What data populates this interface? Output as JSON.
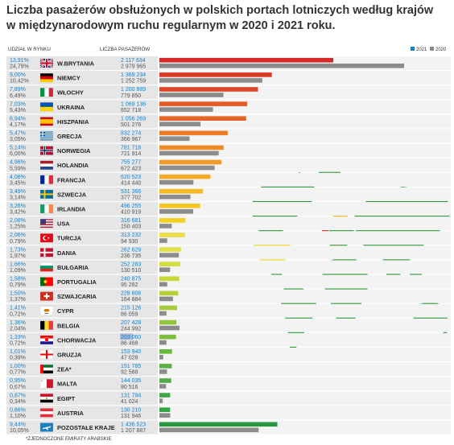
{
  "title_line1": "Liczba pasażerów obsłużonych w polskich portach lotniczych według krajów",
  "title_line2": "w międzynarodowym ruchu regularnym w 2020 i 2021 roku.",
  "header_share": "UDZIAŁ W RYNKU",
  "header_count": "LICZBA PASAŻERÓW",
  "footnote": "*ZJEDNOCZONE EMIRATY ARABSKIE",
  "colors": {
    "y2021": "#1e7fc0",
    "y2020": "#8c8c8c",
    "map_land": "#2d9a3b",
    "map_usa": "#f2da21"
  },
  "chart_data": {
    "type": "bar",
    "orientation": "horizontal",
    "legend": {
      "placement": "top-right",
      "entries": [
        "2021",
        "2020"
      ]
    },
    "columns": [
      "UDZIAŁ W RYNKU",
      "LICZBA PASAŻERÓW"
    ],
    "rows": [
      {
        "country": "W.BRYTANIA",
        "flag": "gb",
        "share2021": "13,91%",
        "share2020": "24,79%",
        "pass2021": "2 117 634",
        "pass2020": "2 979 965",
        "v2021": 2117634,
        "v2020": 2979965,
        "color": "#d42a27"
      },
      {
        "country": "NIEMCY",
        "flag": "de",
        "share2021": "9,00%",
        "share2020": "10,42%",
        "pass2021": "1 369 234",
        "pass2020": "1 252 759",
        "v2021": 1369234,
        "v2020": 1252759,
        "color": "#dc3a27"
      },
      {
        "country": "WŁOCHY",
        "flag": "it",
        "share2021": "7,89%",
        "share2020": "6,49%",
        "pass2021": "1 200 889",
        "pass2020": "779 850",
        "v2021": 1200889,
        "v2020": 779850,
        "color": "#e04527"
      },
      {
        "country": "UKRAINA",
        "flag": "ua",
        "share2021": "7,03%",
        "share2020": "5,43%",
        "pass2021": "1 069 136",
        "pass2020": "652 718",
        "v2021": 1069136,
        "v2020": 652718,
        "color": "#e55a27"
      },
      {
        "country": "HISZPANIA",
        "flag": "es",
        "share2021": "6,94%",
        "share2020": "4,17%",
        "pass2021": "1 056 269",
        "pass2020": "501 276",
        "v2021": 1056269,
        "v2020": 501276,
        "color": "#e86527"
      },
      {
        "country": "GRECJA",
        "flag": "gr",
        "share2021": "5,47%",
        "share2020": "3,05%",
        "pass2021": "832 274",
        "pass2020": "366 967",
        "v2021": 832274,
        "v2020": 366967,
        "color": "#ec7a27"
      },
      {
        "country": "NORWEGIA",
        "flag": "no",
        "share2021": "5,14%",
        "share2020": "6,00%",
        "pass2021": "781 718",
        "pass2020": "721 914",
        "v2021": 781718,
        "v2020": 721914,
        "color": "#ef8a28"
      },
      {
        "country": "HOLANDIA",
        "flag": "nl",
        "share2021": "4,96%",
        "share2020": "5,59%",
        "pass2021": "755 277",
        "pass2020": "672 423",
        "v2021": 755277,
        "v2020": 672423,
        "color": "#f19a28"
      },
      {
        "country": "FRANCJA",
        "flag": "fr",
        "share2021": "4,08%",
        "share2020": "3,45%",
        "pass2021": "620 523",
        "pass2020": "414 440",
        "v2021": 620523,
        "v2020": 414440,
        "color": "#f3aa28"
      },
      {
        "country": "SZWECJA",
        "flag": "se",
        "share2021": "3,49%",
        "share2020": "3,14%",
        "pass2021": "531 366",
        "pass2020": "377 702",
        "v2021": 531366,
        "v2020": 377702,
        "color": "#f4bb25"
      },
      {
        "country": "IRLANDIA",
        "flag": "ie",
        "share2021": "3,26%",
        "share2020": "3,42%",
        "pass2021": "496 255",
        "pass2020": "410 919",
        "v2021": 496255,
        "v2020": 410919,
        "color": "#f3c623"
      },
      {
        "country": "USA",
        "flag": "us",
        "share2021": "2,08%",
        "share2020": "1,25%",
        "pass2021": "316 681",
        "pass2020": "150 403",
        "v2021": 316681,
        "v2020": 150403,
        "color": "#f1d022"
      },
      {
        "country": "TURCJA",
        "flag": "tr",
        "share2021": "2,06%",
        "share2020": "0,79%",
        "pass2021": "313 232",
        "pass2020": "94 930",
        "v2021": 313232,
        "v2020": 94930,
        "color": "#ecdc48"
      },
      {
        "country": "DANIA",
        "flag": "dk",
        "share2021": "1,73%",
        "share2020": "1,97%",
        "pass2021": "262 629",
        "pass2020": "236 735",
        "v2021": 262629,
        "v2020": 236735,
        "color": "#e2e146"
      },
      {
        "country": "BUŁGARIA",
        "flag": "bg",
        "share2021": "1,66%",
        "share2020": "1,09%",
        "pass2021": "252 283",
        "pass2020": "130 510",
        "v2021": 252283,
        "v2020": 130510,
        "color": "#d4dc3c"
      },
      {
        "country": "PORTUGALIA",
        "flag": "pt",
        "share2021": "1,58%",
        "share2020": "0,79%",
        "pass2021": "240 875",
        "pass2020": "95 282",
        "v2021": 240875,
        "v2020": 95282,
        "color": "#c6d737"
      },
      {
        "country": "SZWAJCARIA",
        "flag": "ch",
        "share2021": "1,50%",
        "share2020": "1,37%",
        "pass2021": "228 606",
        "pass2020": "164 884",
        "v2021": 228606,
        "v2020": 164884,
        "color": "#b6d23a"
      },
      {
        "country": "CYPR",
        "flag": "cy",
        "share2021": "1,41%",
        "share2020": "0,72%",
        "pass2021": "215 126",
        "pass2020": "86 059",
        "v2021": 215126,
        "v2020": 86059,
        "color": "#a5cc3c"
      },
      {
        "country": "BELGIA",
        "flag": "be",
        "share2021": "1,36%",
        "share2020": "2,04%",
        "pass2021": "207 428",
        "pass2020": "244 992",
        "v2021": 207428,
        "v2020": 244992,
        "color": "#92c43e"
      },
      {
        "country": "CHORWACJA",
        "flag": "hr",
        "share2021": "1,33%",
        "share2020": "0,72%",
        "pass2021": "203 060",
        "pass2020": "86 468",
        "v2021": 203060,
        "v2020": 86468,
        "color": "#7fbd40",
        "highlight": true
      },
      {
        "country": "GRUZJA",
        "flag": "ge",
        "share2021": "1,01%",
        "share2020": "0,39%",
        "pass2021": "153 940",
        "pass2020": "47 028",
        "v2021": 153940,
        "v2020": 47028,
        "color": "#6db741"
      },
      {
        "country": "ZEA*",
        "flag": "ae",
        "share2021": "1,00%",
        "share2020": "0,77%",
        "pass2021": "151 785",
        "pass2020": "92 588",
        "v2021": 151785,
        "v2020": 92588,
        "color": "#5cb142"
      },
      {
        "country": "MALTA",
        "flag": "mt",
        "share2021": "0,95%",
        "share2020": "0,67%",
        "pass2021": "144 035",
        "pass2020": "80 516",
        "v2021": 144035,
        "v2020": 80516,
        "color": "#4fab43"
      },
      {
        "country": "EGIPT",
        "flag": "eg",
        "share2021": "0,87%",
        "share2020": "0,34%",
        "pass2021": "131 794",
        "pass2020": "41 024",
        "v2021": 131794,
        "v2020": 41024,
        "color": "#43a645"
      },
      {
        "country": "AUSTRIA",
        "flag": "at",
        "share2021": "0,86%",
        "share2020": "1,10%",
        "pass2021": "130 210",
        "pass2020": "131 946",
        "v2021": 130210,
        "v2020": 131946,
        "color": "#39a146"
      },
      {
        "country": "POZOSTAŁE KRAJE",
        "flag": "other",
        "share2021": "9,44%",
        "share2020": "10,05%",
        "pass2021": "1 436 523",
        "pass2020": "1 207 887",
        "v2021": 1436523,
        "v2020": 1207887,
        "color": "#27963f"
      }
    ]
  }
}
